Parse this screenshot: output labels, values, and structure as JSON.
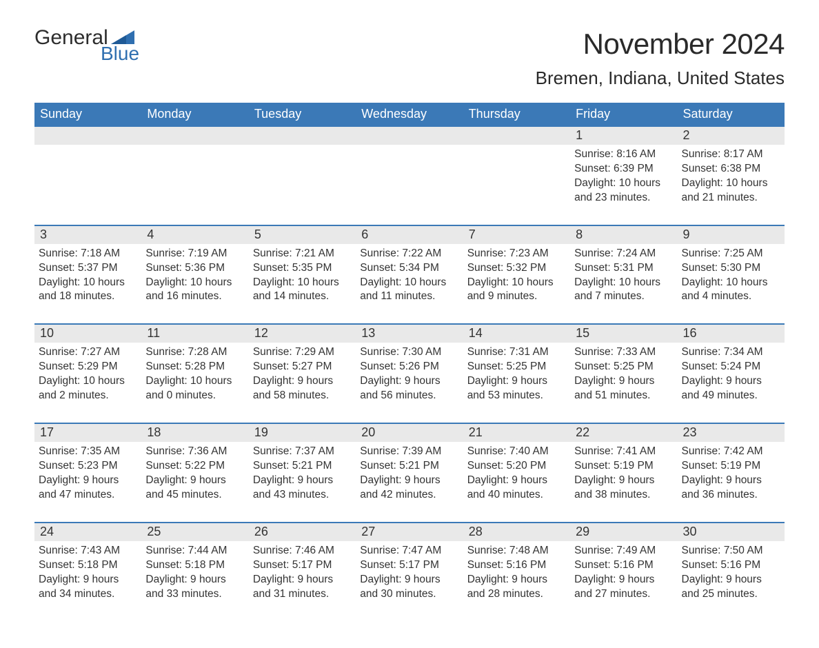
{
  "brand": {
    "word1": "General",
    "word2": "Blue",
    "flag_color": "#2f6fb0"
  },
  "title": "November 2024",
  "location": "Bremen, Indiana, United States",
  "colors": {
    "header_bg": "#3b79b7",
    "header_text": "#ffffff",
    "daynum_bg": "#e9e9e9",
    "row_divider": "#3b79b7",
    "body_text": "#333333",
    "page_bg": "#ffffff"
  },
  "weekdays": [
    "Sunday",
    "Monday",
    "Tuesday",
    "Wednesday",
    "Thursday",
    "Friday",
    "Saturday"
  ],
  "weeks": [
    [
      null,
      null,
      null,
      null,
      null,
      {
        "n": "1",
        "sunrise": "8:16 AM",
        "sunset": "6:39 PM",
        "dl_h": "10",
        "dl_m": "23"
      },
      {
        "n": "2",
        "sunrise": "8:17 AM",
        "sunset": "6:38 PM",
        "dl_h": "10",
        "dl_m": "21"
      }
    ],
    [
      {
        "n": "3",
        "sunrise": "7:18 AM",
        "sunset": "5:37 PM",
        "dl_h": "10",
        "dl_m": "18"
      },
      {
        "n": "4",
        "sunrise": "7:19 AM",
        "sunset": "5:36 PM",
        "dl_h": "10",
        "dl_m": "16"
      },
      {
        "n": "5",
        "sunrise": "7:21 AM",
        "sunset": "5:35 PM",
        "dl_h": "10",
        "dl_m": "14"
      },
      {
        "n": "6",
        "sunrise": "7:22 AM",
        "sunset": "5:34 PM",
        "dl_h": "10",
        "dl_m": "11"
      },
      {
        "n": "7",
        "sunrise": "7:23 AM",
        "sunset": "5:32 PM",
        "dl_h": "10",
        "dl_m": "9"
      },
      {
        "n": "8",
        "sunrise": "7:24 AM",
        "sunset": "5:31 PM",
        "dl_h": "10",
        "dl_m": "7"
      },
      {
        "n": "9",
        "sunrise": "7:25 AM",
        "sunset": "5:30 PM",
        "dl_h": "10",
        "dl_m": "4"
      }
    ],
    [
      {
        "n": "10",
        "sunrise": "7:27 AM",
        "sunset": "5:29 PM",
        "dl_h": "10",
        "dl_m": "2"
      },
      {
        "n": "11",
        "sunrise": "7:28 AM",
        "sunset": "5:28 PM",
        "dl_h": "10",
        "dl_m": "0"
      },
      {
        "n": "12",
        "sunrise": "7:29 AM",
        "sunset": "5:27 PM",
        "dl_h": "9",
        "dl_m": "58"
      },
      {
        "n": "13",
        "sunrise": "7:30 AM",
        "sunset": "5:26 PM",
        "dl_h": "9",
        "dl_m": "56"
      },
      {
        "n": "14",
        "sunrise": "7:31 AM",
        "sunset": "5:25 PM",
        "dl_h": "9",
        "dl_m": "53"
      },
      {
        "n": "15",
        "sunrise": "7:33 AM",
        "sunset": "5:25 PM",
        "dl_h": "9",
        "dl_m": "51"
      },
      {
        "n": "16",
        "sunrise": "7:34 AM",
        "sunset": "5:24 PM",
        "dl_h": "9",
        "dl_m": "49"
      }
    ],
    [
      {
        "n": "17",
        "sunrise": "7:35 AM",
        "sunset": "5:23 PM",
        "dl_h": "9",
        "dl_m": "47"
      },
      {
        "n": "18",
        "sunrise": "7:36 AM",
        "sunset": "5:22 PM",
        "dl_h": "9",
        "dl_m": "45"
      },
      {
        "n": "19",
        "sunrise": "7:37 AM",
        "sunset": "5:21 PM",
        "dl_h": "9",
        "dl_m": "43"
      },
      {
        "n": "20",
        "sunrise": "7:39 AM",
        "sunset": "5:21 PM",
        "dl_h": "9",
        "dl_m": "42"
      },
      {
        "n": "21",
        "sunrise": "7:40 AM",
        "sunset": "5:20 PM",
        "dl_h": "9",
        "dl_m": "40"
      },
      {
        "n": "22",
        "sunrise": "7:41 AM",
        "sunset": "5:19 PM",
        "dl_h": "9",
        "dl_m": "38"
      },
      {
        "n": "23",
        "sunrise": "7:42 AM",
        "sunset": "5:19 PM",
        "dl_h": "9",
        "dl_m": "36"
      }
    ],
    [
      {
        "n": "24",
        "sunrise": "7:43 AM",
        "sunset": "5:18 PM",
        "dl_h": "9",
        "dl_m": "34"
      },
      {
        "n": "25",
        "sunrise": "7:44 AM",
        "sunset": "5:18 PM",
        "dl_h": "9",
        "dl_m": "33"
      },
      {
        "n": "26",
        "sunrise": "7:46 AM",
        "sunset": "5:17 PM",
        "dl_h": "9",
        "dl_m": "31"
      },
      {
        "n": "27",
        "sunrise": "7:47 AM",
        "sunset": "5:17 PM",
        "dl_h": "9",
        "dl_m": "30"
      },
      {
        "n": "28",
        "sunrise": "7:48 AM",
        "sunset": "5:16 PM",
        "dl_h": "9",
        "dl_m": "28"
      },
      {
        "n": "29",
        "sunrise": "7:49 AM",
        "sunset": "5:16 PM",
        "dl_h": "9",
        "dl_m": "27"
      },
      {
        "n": "30",
        "sunrise": "7:50 AM",
        "sunset": "5:16 PM",
        "dl_h": "9",
        "dl_m": "25"
      }
    ]
  ],
  "labels": {
    "sunrise": "Sunrise: ",
    "sunset": "Sunset: ",
    "daylight_prefix": "Daylight: ",
    "hours_word": " hours",
    "and_word": "and ",
    "minutes_word": " minutes."
  }
}
